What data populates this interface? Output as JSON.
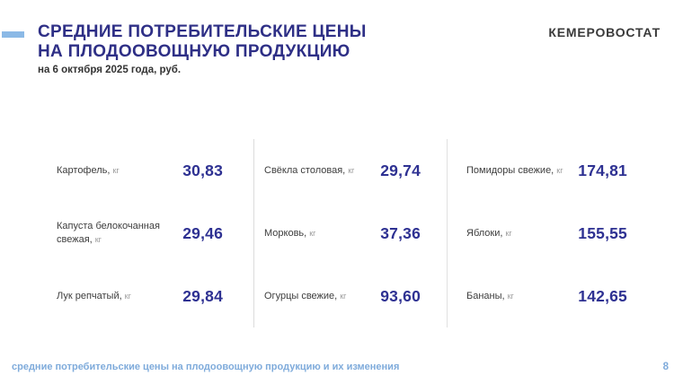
{
  "header": {
    "title_line1": "СРЕДНИЕ ПОТРЕБИТЕЛЬСКИЕ ЦЕНЫ",
    "title_line2": "НА ПЛОДООВОЩНУЮ ПРОДУКЦИЮ",
    "subtitle": "на 6 октября 2025 года, руб.",
    "brand": "КЕМЕРОВОСТАТ"
  },
  "colors": {
    "accent_blue": "#8bb9e6",
    "title_navy": "#2e2f86",
    "value_navy": "#2e3192",
    "footer_blue": "#7fabdb",
    "label_gray": "#3d3d3d",
    "unit_gray": "#9a9a9a"
  },
  "prices": {
    "columns": [
      {
        "items": [
          {
            "label": "Картофель,",
            "unit": "кг",
            "value": "30,83"
          },
          {
            "label": "Капуста белокочанная свежая,",
            "unit": "кг",
            "value": "29,46"
          },
          {
            "label": "Лук репчатый,",
            "unit": "кг",
            "value": "29,84"
          }
        ]
      },
      {
        "items": [
          {
            "label": "Свёкла столовая,",
            "unit": "кг",
            "value": "29,74"
          },
          {
            "label": "Морковь,",
            "unit": "кг",
            "value": "37,36"
          },
          {
            "label": "Огурцы свежие,",
            "unit": "кг",
            "value": "93,60"
          }
        ]
      },
      {
        "items": [
          {
            "label": "Помидоры свежие,",
            "unit": "кг",
            "value": "174,81"
          },
          {
            "label": "Яблоки,",
            "unit": "кг",
            "value": "155,55"
          },
          {
            "label": "Бананы,",
            "unit": "кг",
            "value": "142,65"
          }
        ]
      }
    ]
  },
  "chart_data": {
    "type": "table",
    "title": "Средние потребительские цены на плодоовощную продукцию на 6 октября 2025 года, руб.",
    "categories": [
      "Картофель",
      "Капуста белокочанная свежая",
      "Лук репчатый",
      "Свёкла столовая",
      "Морковь",
      "Огурцы свежие",
      "Помидоры свежие",
      "Яблоки",
      "Бананы"
    ],
    "values": [
      30.83,
      29.46,
      29.84,
      29.74,
      37.36,
      93.6,
      174.81,
      155.55,
      142.65
    ],
    "unit": "руб. за кг"
  },
  "footer": {
    "caption": "средние потребительские цены на плодоовощную продукцию и их изменения",
    "page_number": "8"
  }
}
